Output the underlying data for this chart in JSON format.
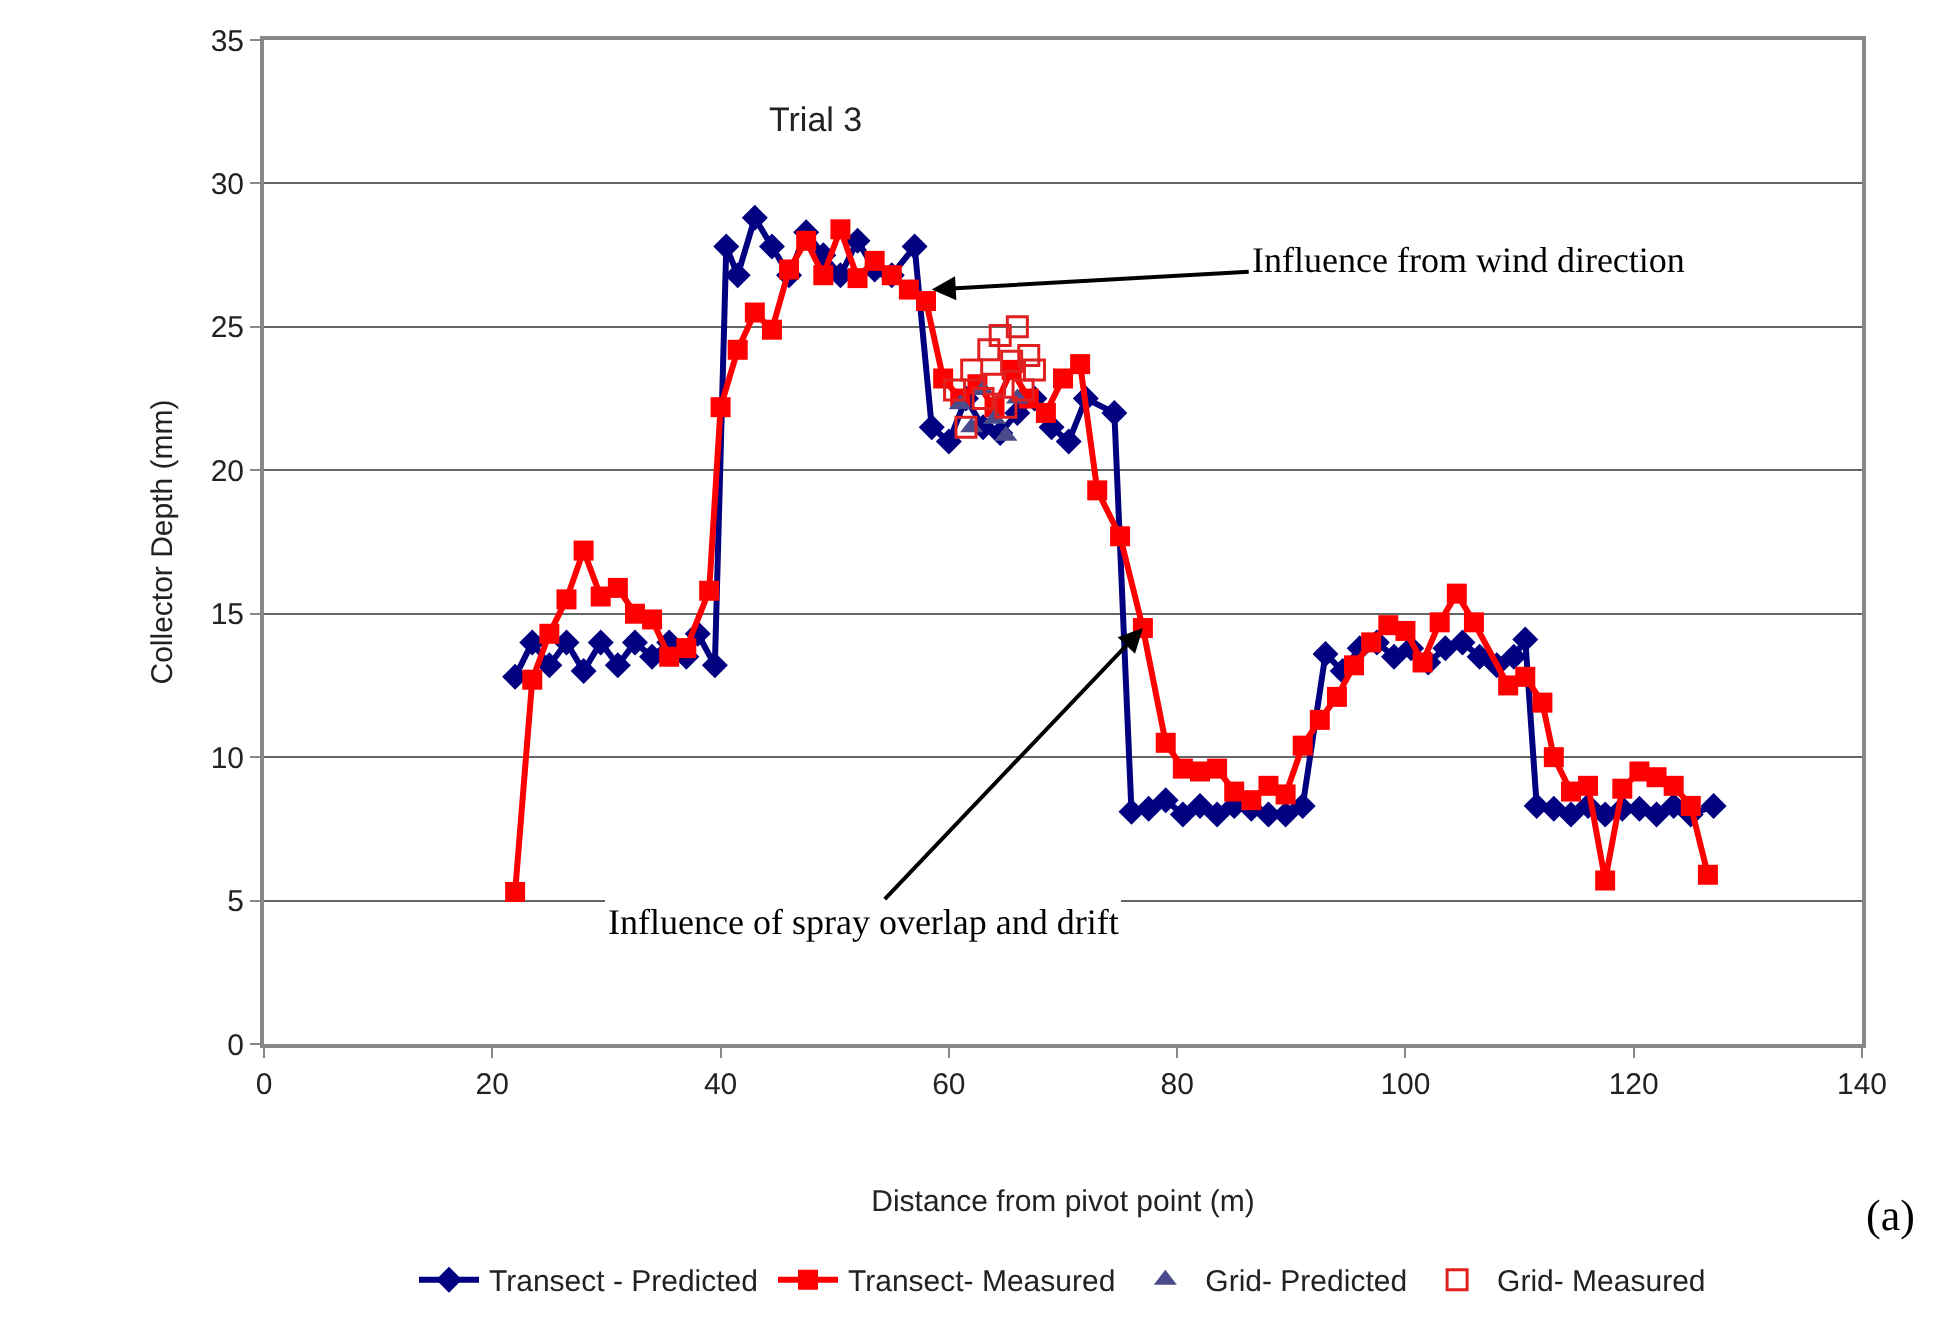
{
  "chart_data": {
    "type": "line",
    "title": "Trial 3",
    "xlabel": "Distance from pivot point (m)",
    "ylabel": "Collector Depth (mm)",
    "xlim": [
      0,
      140
    ],
    "xticks": [
      0,
      20,
      40,
      60,
      80,
      100,
      120,
      140
    ],
    "ylim": [
      0,
      35
    ],
    "yticks": [
      0,
      5,
      10,
      15,
      20,
      25,
      30,
      35
    ],
    "grid": "y",
    "legend": "bottom",
    "series": [
      {
        "name": "Transect - Predicted",
        "color": "#000080",
        "marker": "diamond",
        "x": [
          22,
          23.5,
          25,
          26.5,
          28,
          29.5,
          31,
          32.5,
          34,
          35.5,
          37,
          38,
          39.5,
          40.5,
          41.5,
          43,
          44.5,
          46,
          47.5,
          49,
          50.5,
          52,
          53.5,
          55,
          57,
          58.5,
          60,
          61.5,
          63,
          64.5,
          66,
          67.5,
          69,
          70.5,
          72,
          74.5,
          76,
          77.5,
          79,
          80.5,
          82,
          83.5,
          85,
          86.5,
          88,
          89.5,
          91,
          93,
          94.5,
          96,
          97.5,
          99,
          100.5,
          102,
          103.5,
          105,
          106.5,
          108,
          109.5,
          110.5,
          111.5,
          113,
          114.5,
          116,
          117.5,
          119,
          120.5,
          122,
          123.5,
          125,
          127
        ],
        "values": [
          12.8,
          14,
          13.2,
          14,
          13,
          14,
          13.2,
          14,
          13.5,
          14,
          13.5,
          14.3,
          13.2,
          27.8,
          26.8,
          28.8,
          27.8,
          26.8,
          28.3,
          27.5,
          26.8,
          28,
          27,
          26.8,
          27.8,
          21.5,
          21,
          22.5,
          21.5,
          21.3,
          22,
          22.5,
          21.5,
          21,
          22.5,
          22,
          8.1,
          8.2,
          8.5,
          8,
          8.3,
          8,
          8.3,
          8.2,
          8,
          8,
          8.3,
          13.6,
          13,
          13.8,
          14,
          13.5,
          13.8,
          13.3,
          13.8,
          14,
          13.5,
          13.2,
          13.5,
          14.1,
          8.3,
          8.2,
          8,
          8.3,
          8,
          8.2,
          8.2,
          8,
          8.3,
          8,
          8.3
        ]
      },
      {
        "name": "Transect- Measured",
        "color": "#ff0000",
        "marker": "square",
        "x": [
          22,
          23.5,
          25,
          26.5,
          28,
          29.5,
          31,
          32.5,
          34,
          35.5,
          37,
          39,
          40,
          41.5,
          43,
          44.5,
          46,
          47.5,
          49,
          50.5,
          52,
          53.5,
          55,
          56.5,
          58,
          59.5,
          61,
          62.5,
          64,
          65.5,
          67,
          68.5,
          70,
          71.5,
          73,
          75,
          77,
          79,
          80.5,
          82,
          83.5,
          85,
          86.5,
          88,
          89.5,
          91,
          92.5,
          94,
          95.5,
          97,
          98.5,
          100,
          101.5,
          103,
          104.5,
          106,
          109,
          110.5,
          112,
          113,
          114.5,
          116,
          117.5,
          119,
          120.5,
          122,
          123.5,
          125,
          126.5
        ],
        "values": [
          5.3,
          12.7,
          14.3,
          15.5,
          17.2,
          15.6,
          15.9,
          15,
          14.8,
          13.5,
          13.8,
          15.8,
          22.2,
          24.2,
          25.5,
          24.9,
          27,
          28,
          26.8,
          28.4,
          26.7,
          27.3,
          26.8,
          26.3,
          25.9,
          23.2,
          22.5,
          23,
          22.2,
          23.5,
          22.5,
          22,
          23.2,
          23.7,
          19.3,
          17.7,
          14.5,
          10.5,
          9.6,
          9.5,
          9.6,
          8.8,
          8.5,
          9,
          8.7,
          10.4,
          11.3,
          12.1,
          13.2,
          14,
          14.6,
          14.4,
          13.3,
          14.7,
          15.7,
          14.7,
          12.5,
          12.8,
          11.9,
          10,
          8.8,
          9,
          5.7,
          8.9,
          9.5,
          9.3,
          9,
          8.3,
          5.9
        ]
      },
      {
        "name": "Grid- Predicted",
        "color": "#4b4b8c",
        "type": "scatter",
        "marker": "triangle",
        "x": [
          61,
          62,
          63,
          64,
          65,
          66
        ],
        "values": [
          22.3,
          21.5,
          22.8,
          21.8,
          21.2,
          22.5
        ]
      },
      {
        "name": "Grid- Measured",
        "color": "#e02020",
        "type": "scatter",
        "marker": "square",
        "x": [
          60.5,
          61.5,
          62,
          63,
          63.5,
          64,
          64.5,
          65,
          65.5,
          66,
          66.5,
          67,
          67.5
        ],
        "values": [
          22.8,
          21.5,
          23.5,
          22.5,
          24.2,
          23,
          24.7,
          22.2,
          23.8,
          25,
          22.8,
          24,
          23.5
        ]
      }
    ],
    "annotations": [
      {
        "text": "Influence from wind direction",
        "x": 58.5,
        "y": 26.3
      },
      {
        "text": "Influence of spray overlap and drift",
        "x": 77,
        "y": 14.5
      },
      "(a)"
    ]
  }
}
